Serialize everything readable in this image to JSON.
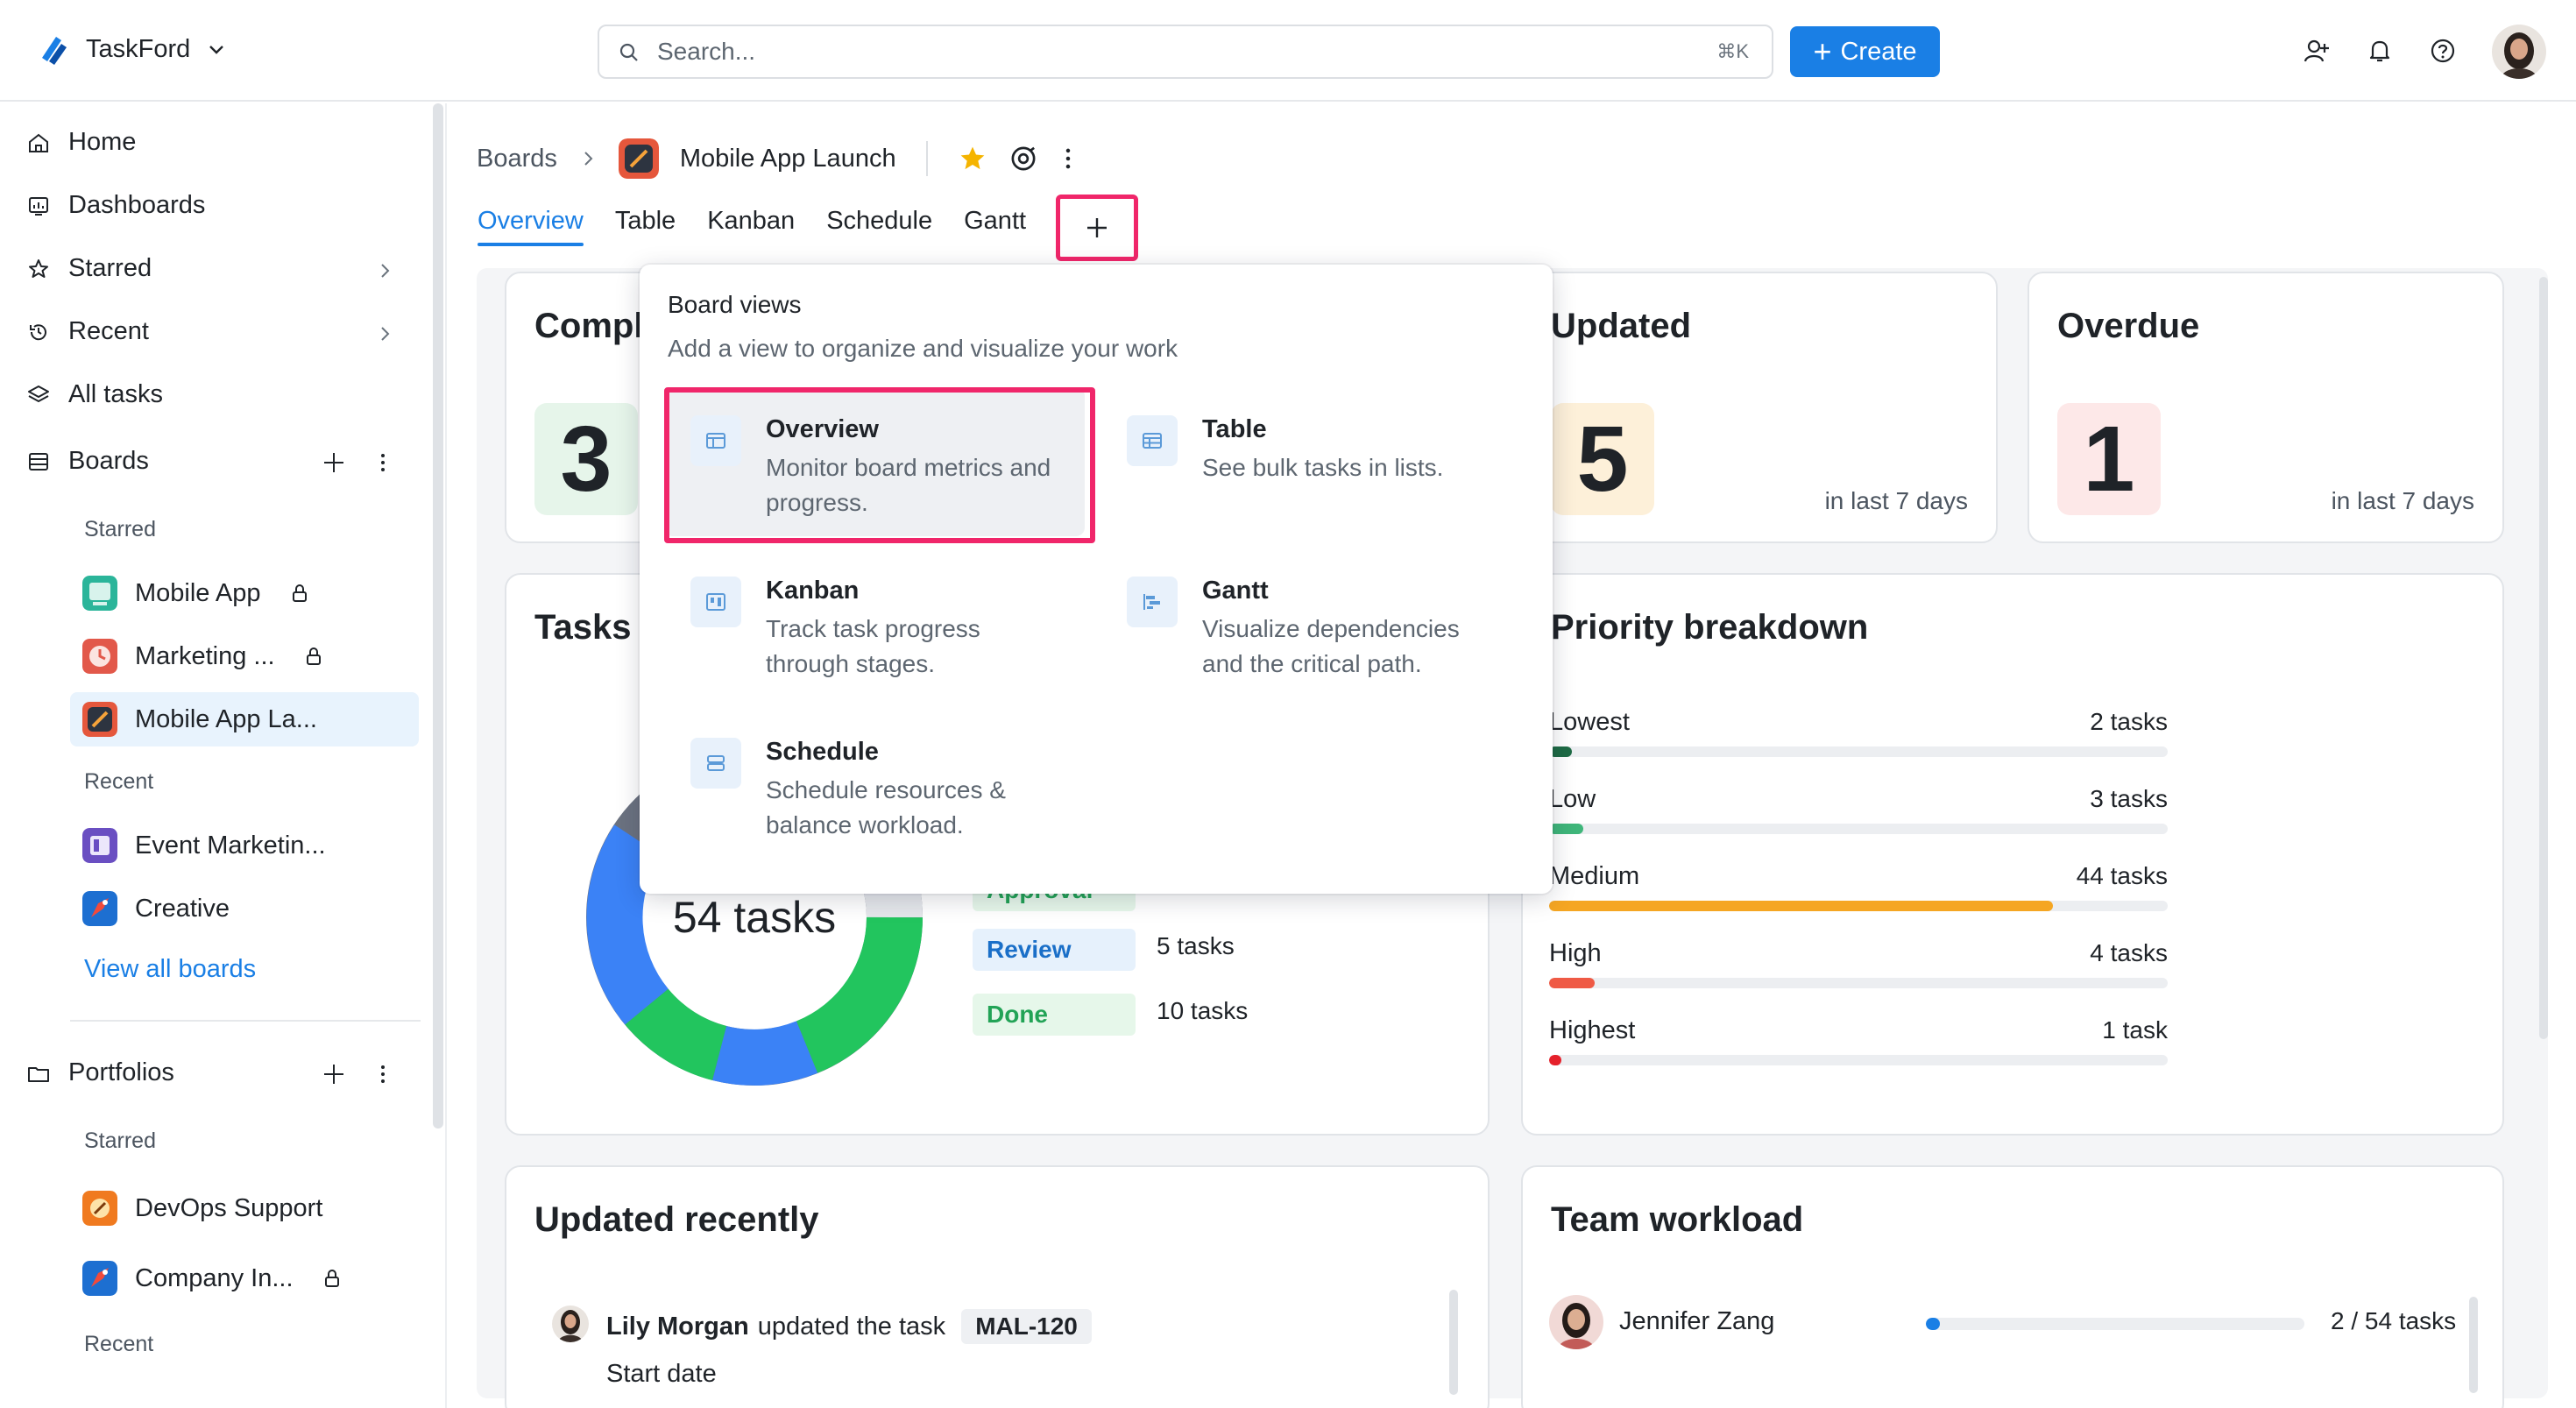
{
  "app": {
    "name": "TaskFord"
  },
  "search": {
    "placeholder": "Search...",
    "shortcut": "⌘K"
  },
  "header": {
    "create_label": "Create"
  },
  "colors": {
    "accent": "#1a7fe5",
    "highlight": "#f0266a"
  },
  "sidebar": {
    "nav": [
      {
        "label": "Home",
        "icon": "home-icon"
      },
      {
        "label": "Dashboards",
        "icon": "dashboard-icon"
      },
      {
        "label": "Starred",
        "icon": "star-icon"
      },
      {
        "label": "Recent",
        "icon": "history-icon"
      },
      {
        "label": "All tasks",
        "icon": "layers-icon"
      }
    ],
    "boards_label": "Boards",
    "starred_label": "Starred",
    "recent_label": "Recent",
    "starred_boards": [
      {
        "label": "Mobile App"
      },
      {
        "label": "Marketing ..."
      },
      {
        "label": "Mobile App La..."
      }
    ],
    "recent_boards": [
      {
        "label": "Event Marketin..."
      },
      {
        "label": "Creative"
      }
    ],
    "view_all": "View all boards",
    "portfolios_label": "Portfolios",
    "portfolio_starred_label": "Starred",
    "portfolios": [
      {
        "label": "DevOps Support"
      },
      {
        "label": "Company In..."
      }
    ],
    "portfolio_recent_label": "Recent"
  },
  "breadcrumb": {
    "root": "Boards",
    "title": "Mobile App Launch"
  },
  "tabs": [
    "Overview",
    "Table",
    "Kanban",
    "Schedule",
    "Gantt"
  ],
  "cards": {
    "completed": {
      "title": "Compl",
      "value": "3"
    },
    "updated": {
      "title": "Updated",
      "value": "5",
      "note": "in last 7 days"
    },
    "overdue": {
      "title": "Overdue",
      "value": "1",
      "note": "in last 7 days"
    },
    "tasks": {
      "title": "Tasks",
      "total_label": "54 tasks",
      "statuses": [
        {
          "label": "Approval",
          "count": ""
        },
        {
          "label": "Review",
          "count": "5 tasks"
        },
        {
          "label": "Done",
          "count": "10 tasks"
        }
      ]
    },
    "priority": {
      "title": "Priority breakdown",
      "rows": [
        {
          "label": "Lowest",
          "count": "2 tasks",
          "value": 2,
          "color": "#1e6b45"
        },
        {
          "label": "Low",
          "count": "3 tasks",
          "value": 3,
          "color": "#3fb67a"
        },
        {
          "label": "Medium",
          "count": "44 tasks",
          "value": 44,
          "color": "#f5a623"
        },
        {
          "label": "High",
          "count": "4 tasks",
          "value": 4,
          "color": "#ef5a45"
        },
        {
          "label": "Highest",
          "count": "1 task",
          "value": 1,
          "color": "#e5212b"
        }
      ]
    },
    "updated_recently": {
      "title": "Updated recently",
      "user": "Lily Morgan",
      "action": "updated the task",
      "task_key": "MAL-120",
      "field": "Start date"
    },
    "workload": {
      "title": "Team workload",
      "rows": [
        {
          "name": "Jennifer Zang",
          "count": "2 / 54 tasks",
          "value": 2,
          "total": 54
        }
      ]
    }
  },
  "dropdown": {
    "title": "Board views",
    "subtitle": "Add a view to organize and visualize your work",
    "options": [
      {
        "name": "Overview",
        "desc": "Monitor board metrics and progress.",
        "icon": "overview-icon"
      },
      {
        "name": "Table",
        "desc": "See bulk tasks in lists.",
        "icon": "table-icon"
      },
      {
        "name": "Kanban",
        "desc": "Track task progress through stages.",
        "icon": "kanban-icon"
      },
      {
        "name": "Gantt",
        "desc": "Visualize dependencies and the critical path.",
        "icon": "gantt-icon"
      },
      {
        "name": "Schedule",
        "desc": "Schedule resources & balance workload.",
        "icon": "schedule-icon"
      }
    ]
  }
}
